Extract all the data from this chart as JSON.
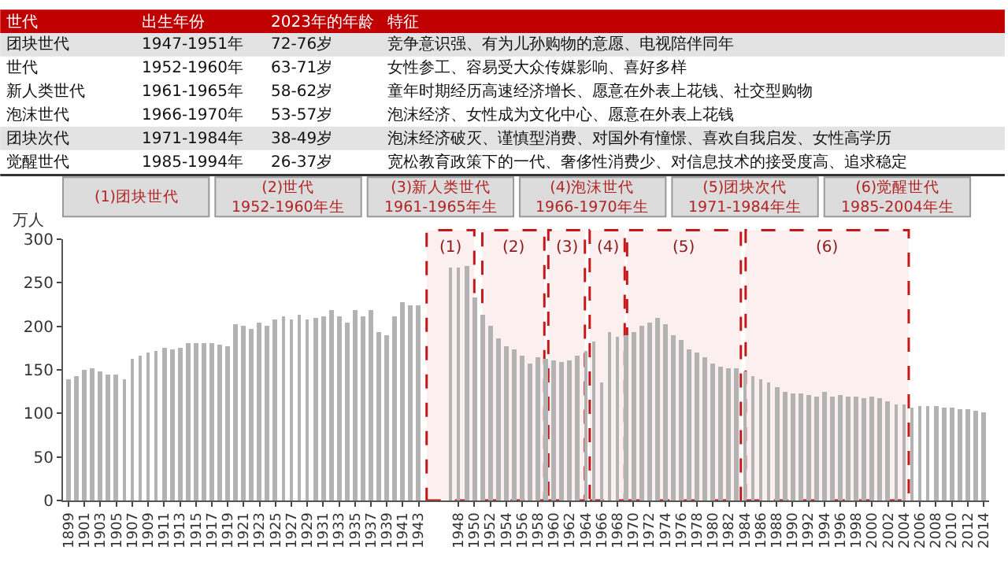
{
  "chart_data": {
    "type": "bar",
    "ylabel": "万人",
    "x": [
      1899,
      1900,
      1901,
      1902,
      1903,
      1904,
      1905,
      1906,
      1907,
      1908,
      1909,
      1910,
      1911,
      1912,
      1913,
      1914,
      1915,
      1916,
      1917,
      1918,
      1919,
      1920,
      1921,
      1922,
      1923,
      1924,
      1925,
      1926,
      1927,
      1928,
      1929,
      1930,
      1931,
      1932,
      1933,
      1934,
      1935,
      1936,
      1937,
      1938,
      1939,
      1940,
      1941,
      1942,
      1943,
      1947,
      1948,
      1949,
      1950,
      1951,
      1952,
      1953,
      1954,
      1955,
      1956,
      1957,
      1958,
      1959,
      1960,
      1961,
      1962,
      1963,
      1964,
      1965,
      1966,
      1967,
      1968,
      1969,
      1970,
      1971,
      1972,
      1973,
      1974,
      1975,
      1976,
      1977,
      1978,
      1979,
      1980,
      1981,
      1982,
      1983,
      1984,
      1985,
      1986,
      1987,
      1988,
      1989,
      1990,
      1991,
      1992,
      1993,
      1994,
      1995,
      1996,
      1997,
      1998,
      1999,
      2000,
      2001,
      2002,
      2003,
      2004,
      2005,
      2006,
      2007,
      2008,
      2009,
      2010,
      2011,
      2012,
      2013,
      2014
    ],
    "values": [
      139,
      142,
      150,
      151,
      149,
      144,
      145,
      140,
      162,
      166,
      170,
      171,
      175,
      174,
      176,
      181,
      180,
      180,
      181,
      179,
      178,
      203,
      200,
      197,
      204,
      200,
      208,
      211,
      207,
      214,
      208,
      209,
      211,
      219,
      212,
      205,
      219,
      211,
      218,
      193,
      190,
      212,
      228,
      224,
      225,
      268,
      268,
      270,
      234,
      214,
      201,
      186,
      177,
      173,
      166,
      157,
      165,
      163,
      161,
      159,
      161,
      166,
      172,
      182,
      136,
      194,
      188,
      189,
      194,
      200,
      204,
      209,
      203,
      190,
      184,
      174,
      170,
      164,
      157,
      153,
      151,
      151,
      149,
      143,
      139,
      135,
      131,
      124,
      122,
      122,
      121,
      119,
      124,
      119,
      121,
      120,
      120,
      118,
      119,
      117,
      114,
      111,
      110,
      106,
      109,
      109,
      109,
      107,
      107,
      105,
      104,
      103,
      101
    ],
    "color": "#b3b3b3",
    "xlim": [
      1898.3,
      2014.7
    ],
    "xticks": [
      1899,
      1901,
      1903,
      1905,
      1907,
      1909,
      1911,
      1913,
      1915,
      1917,
      1919,
      1921,
      1923,
      1925,
      1927,
      1929,
      1931,
      1933,
      1935,
      1937,
      1939,
      1941,
      1943,
      1948,
      1950,
      1952,
      1954,
      1956,
      1958,
      1960,
      1962,
      1964,
      1966,
      1968,
      1970,
      1972,
      1974,
      1976,
      1978,
      1980,
      1982,
      1984,
      1986,
      1988,
      1990,
      1992,
      1994,
      1996,
      1998,
      2000,
      2002,
      2004,
      2006,
      2008,
      2010,
      2012,
      2014
    ],
    "ylim": [
      0,
      300
    ],
    "yticks": [
      0,
      50,
      100,
      150,
      200,
      250,
      300
    ],
    "grid": false,
    "bands": [
      {
        "axis": "x",
        "from": 1944,
        "to": 1950,
        "label": "(1)",
        "color": "#c00000"
      },
      {
        "axis": "x",
        "from": 1951,
        "to": 1958.8,
        "label": "(2)",
        "color": "#c00000"
      },
      {
        "axis": "x",
        "from": 1959.3,
        "to": 1963.9,
        "label": "(3)",
        "color": "#c00000"
      },
      {
        "axis": "x",
        "from": 1964.5,
        "to": 1968.9,
        "label": "(4)",
        "color": "#c00000"
      },
      {
        "axis": "x",
        "from": 1969.2,
        "to": 1983.5,
        "label": "(5)",
        "color": "#c00000"
      },
      {
        "axis": "x",
        "from": 1984.1,
        "to": 2004.6,
        "label": "(6)",
        "color": "#c00000"
      }
    ],
    "annotations": [
      "世代",
      "出生年份",
      "2023年的年龄",
      "特征",
      "团块世代",
      "1947-1951年",
      "72-76岁",
      "竞争意识强、有为儿孙购物的意愿、电视陪伴同年",
      "世代",
      "1952-1960年",
      "63-71岁",
      "女性参工、容易受大众传媒影响、喜好多样",
      "新人类世代",
      "1961-1965年",
      "58-62岁",
      "童年时期经历高速经济增长、愿意在外表上花钱、社交型购物",
      "泡沫世代",
      "1966-1970年",
      "53-57岁",
      "泡沫经济、女性成为文化中心、愿意在外表上花钱",
      "团块次代",
      "1971-1984年",
      "38-49岁",
      "泡沫经济破灭、谨慎型消费、对国外有憧憬、喜欢自我启发、女性高学历",
      "觉醒世代",
      "1985-1994年",
      "26-37岁",
      "宽松教育政策下的一代、奢侈性消费少、对信息技术的接受度高、追求稳定",
      "(1)团块世代",
      "(2)世代\n1952-1960年生",
      "(3)新人类世代\n1961-1965年生",
      "(4)泡沫世代\n1966-1970年生",
      "(5)团块次代\n1971-1984年生",
      "(6)觉醒世代\n1985-2004年生"
    ]
  }
}
